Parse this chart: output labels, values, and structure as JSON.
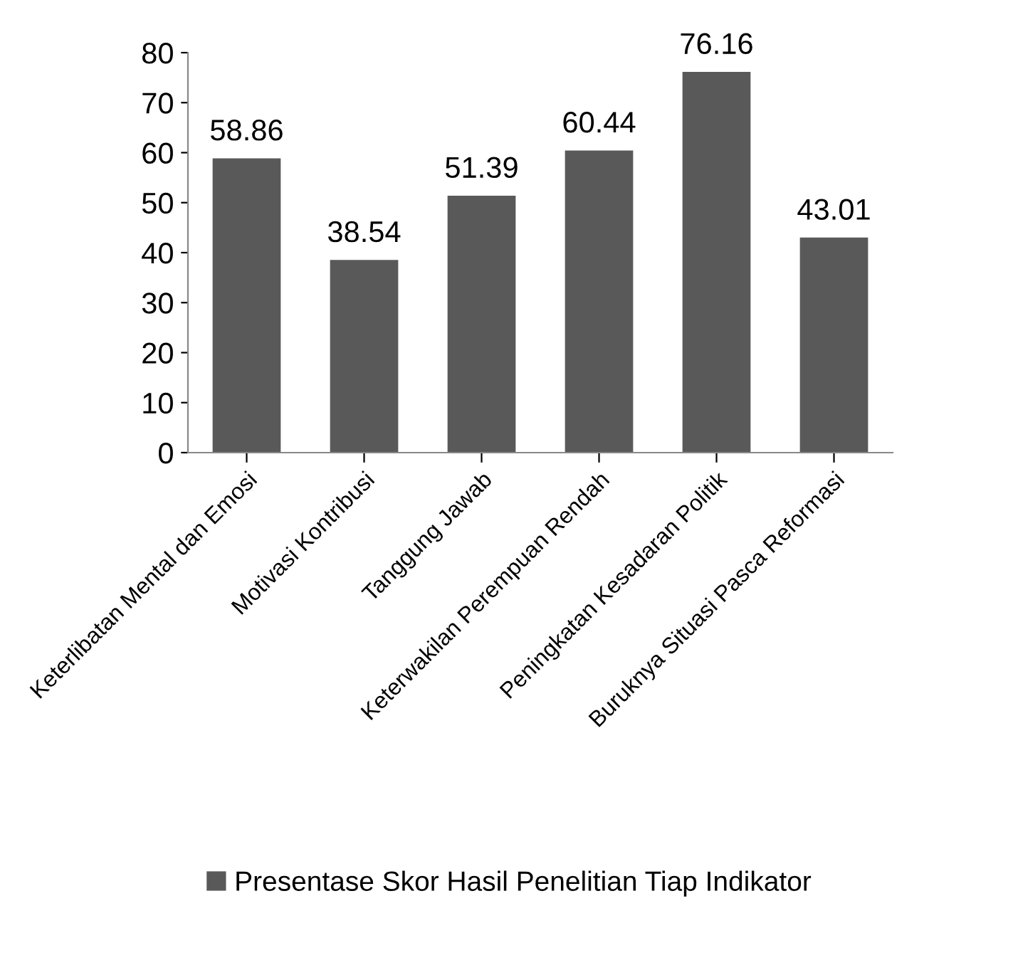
{
  "chart_data": {
    "type": "bar",
    "categories": [
      "Keterlibatan Mental dan Emosi",
      "Motivasi Kontribusi",
      "Tanggung Jawab",
      "Keterwakilan Perempuan Rendah",
      "Peningkatan Kesadaran Politik",
      "Buruknya Situasi Pasca Reformasi"
    ],
    "series": [
      {
        "name": "Presentase Skor Hasil Penelitian Tiap Indikator",
        "color": "#595959",
        "values": [
          58.86,
          38.54,
          51.39,
          60.44,
          76.16,
          43.01
        ]
      }
    ],
    "ylim": [
      0,
      80
    ],
    "yticks": [
      0,
      10,
      20,
      30,
      40,
      50,
      60,
      70,
      80
    ],
    "data_labels": true,
    "grid": false,
    "legend": "bottom"
  }
}
